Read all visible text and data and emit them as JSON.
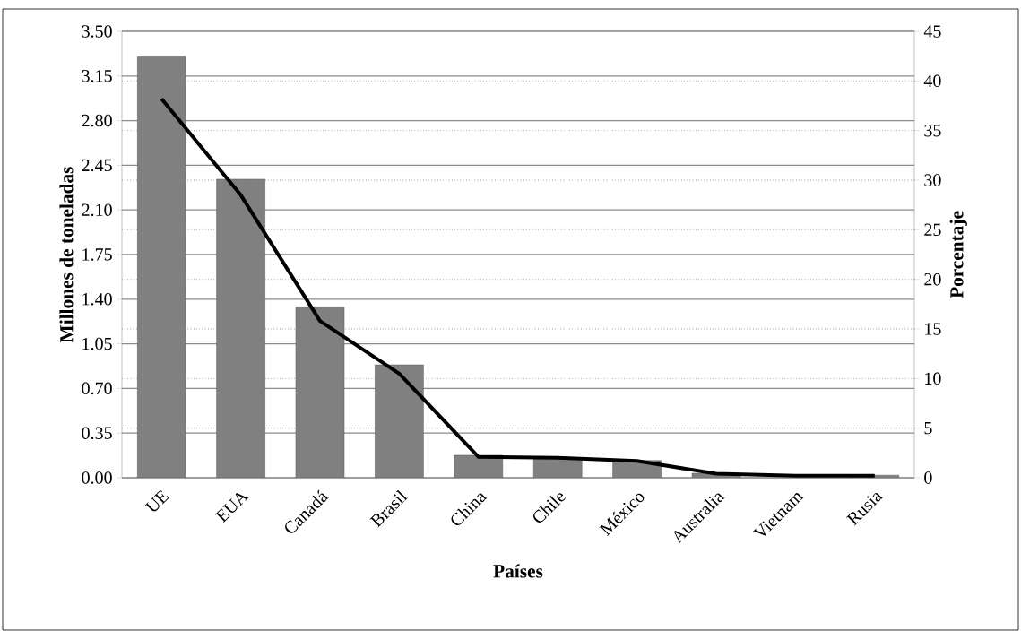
{
  "chart_data": {
    "type": "bar",
    "xlabel": "Países",
    "ylabel": "Millones de toneladas",
    "y2label": "Porcentaje",
    "categories": [
      "UE",
      "EUA",
      "Canadá",
      "Brasil",
      "China",
      "Chile",
      "México",
      "Australia",
      "Vietnam",
      "Rusia"
    ],
    "series": [
      {
        "color": "#808080",
        "values": [
          3.3,
          2.34,
          1.34,
          0.885,
          0.176,
          0.15,
          0.135,
          0.035,
          null,
          0.02
        ]
      },
      {
        "type": "line",
        "axis": "y2",
        "color": "#000000",
        "values": [
          38.2,
          28.5,
          15.8,
          10.5,
          2.1,
          2.0,
          1.7,
          0.4,
          0.2,
          0.2
        ]
      }
    ],
    "ylim": [
      0,
      3.5
    ],
    "yticks": [
      {
        "value": 0,
        "label": "0.00"
      },
      {
        "value": 0.35,
        "label": "0.35"
      },
      {
        "value": 0.7,
        "label": "0.70"
      },
      {
        "value": 1.05,
        "label": "1.05"
      },
      {
        "value": 1.4,
        "label": "1.40"
      },
      {
        "value": 1.75,
        "label": "1.75"
      },
      {
        "value": 2.1,
        "label": "2.10"
      },
      {
        "value": 2.45,
        "label": "2.45"
      },
      {
        "value": 2.8,
        "label": "2.80"
      },
      {
        "value": 3.15,
        "label": "3.15"
      },
      {
        "value": 3.5,
        "label": "3.50"
      }
    ],
    "y2lim": [
      0,
      45
    ],
    "y2ticks": [
      0,
      5,
      10,
      15,
      20,
      25,
      30,
      35,
      40,
      45
    ],
    "grid": "y",
    "legend": false,
    "marker": "none",
    "line_style": "solid"
  }
}
